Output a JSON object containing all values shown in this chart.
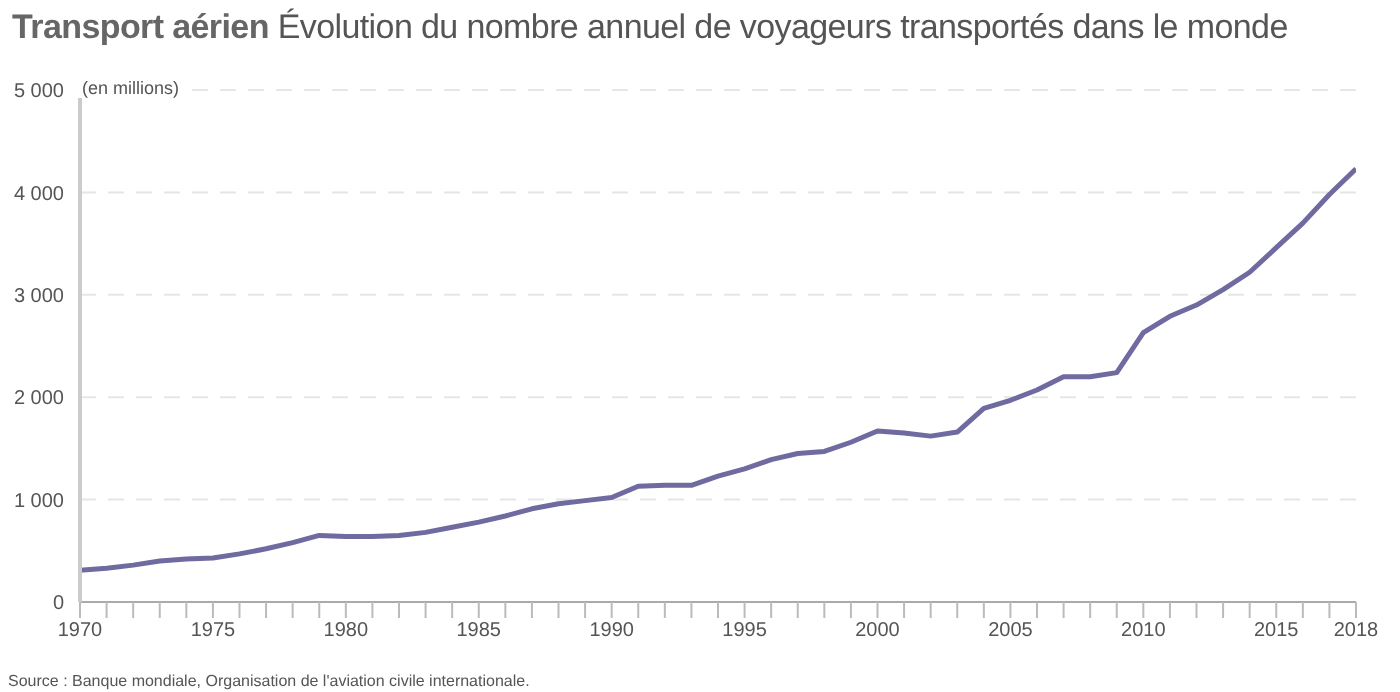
{
  "chart_data": {
    "type": "line",
    "title": "Transport aérien",
    "subtitle": "Évolution du nombre annuel de voyageurs transportés dans le monde",
    "ylabel": "(en millions)",
    "annotations": [
      "Source : Banque mondiale, Organisation de l'aviation civile internationale."
    ],
    "x": [
      1970,
      1971,
      1972,
      1973,
      1974,
      1975,
      1976,
      1977,
      1978,
      1979,
      1980,
      1981,
      1982,
      1983,
      1984,
      1985,
      1986,
      1987,
      1988,
      1989,
      1990,
      1991,
      1992,
      1993,
      1994,
      1995,
      1996,
      1997,
      1998,
      1999,
      2000,
      2001,
      2002,
      2003,
      2004,
      2005,
      2006,
      2007,
      2008,
      2009,
      2010,
      2011,
      2012,
      2013,
      2014,
      2015,
      2016,
      2017,
      2018
    ],
    "series": [
      {
        "color": "#6f6a9f",
        "values": [
          310,
          330,
          360,
          400,
          420,
          430,
          470,
          520,
          580,
          650,
          640,
          640,
          650,
          680,
          730,
          780,
          840,
          910,
          960,
          990,
          1020,
          1130,
          1140,
          1140,
          1230,
          1300,
          1390,
          1450,
          1470,
          1560,
          1670,
          1650,
          1620,
          1660,
          1890,
          1970,
          2070,
          2200,
          2200,
          2240,
          2630,
          2790,
          2900,
          3050,
          3220,
          3460,
          3700,
          3980,
          4230
        ]
      }
    ],
    "xlim": [
      1970,
      2018
    ],
    "xticks": [
      1970,
      {
        "value": 1971,
        "label": null
      },
      {
        "value": 1972,
        "label": null
      },
      {
        "value": 1973,
        "label": null
      },
      {
        "value": 1974,
        "label": null
      },
      1975,
      {
        "value": 1976,
        "label": null
      },
      {
        "value": 1977,
        "label": null
      },
      {
        "value": 1978,
        "label": null
      },
      {
        "value": 1979,
        "label": null
      },
      1980,
      {
        "value": 1981,
        "label": null
      },
      {
        "value": 1982,
        "label": null
      },
      {
        "value": 1983,
        "label": null
      },
      {
        "value": 1984,
        "label": null
      },
      1985,
      {
        "value": 1986,
        "label": null
      },
      {
        "value": 1987,
        "label": null
      },
      {
        "value": 1988,
        "label": null
      },
      {
        "value": 1989,
        "label": null
      },
      1990,
      {
        "value": 1991,
        "label": null
      },
      {
        "value": 1992,
        "label": null
      },
      {
        "value": 1993,
        "label": null
      },
      {
        "value": 1994,
        "label": null
      },
      1995,
      {
        "value": 1996,
        "label": null
      },
      {
        "value": 1997,
        "label": null
      },
      {
        "value": 1998,
        "label": null
      },
      {
        "value": 1999,
        "label": null
      },
      2000,
      {
        "value": 2001,
        "label": null
      },
      {
        "value": 2002,
        "label": null
      },
      {
        "value": 2003,
        "label": null
      },
      {
        "value": 2004,
        "label": null
      },
      2005,
      {
        "value": 2006,
        "label": null
      },
      {
        "value": 2007,
        "label": null
      },
      {
        "value": 2008,
        "label": null
      },
      {
        "value": 2009,
        "label": null
      },
      2010,
      {
        "value": 2011,
        "label": null
      },
      {
        "value": 2012,
        "label": null
      },
      {
        "value": 2013,
        "label": null
      },
      {
        "value": 2014,
        "label": null
      },
      2015,
      {
        "value": 2016,
        "label": null
      },
      {
        "value": 2017,
        "label": null
      },
      2018
    ],
    "ylim": [
      0,
      5000
    ],
    "yticks": [
      0,
      {
        "value": 1000,
        "label": "1 000"
      },
      {
        "value": 2000,
        "label": "2 000"
      },
      {
        "value": 3000,
        "label": "3 000"
      },
      {
        "value": 4000,
        "label": "4 000"
      },
      {
        "value": 5000,
        "label": "5 000"
      }
    ],
    "grid": "y",
    "marker": "none",
    "line_style": "solid",
    "legend": false
  }
}
